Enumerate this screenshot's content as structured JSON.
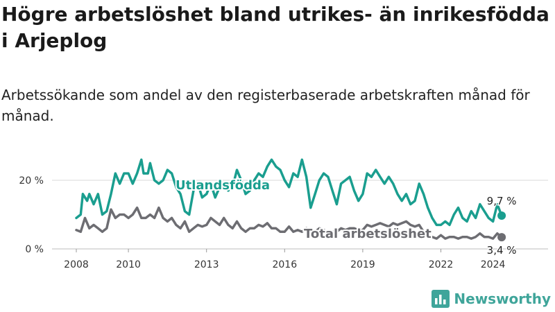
{
  "title": "Högre arbetslöshet bland utrikes- än inrikesfödda i Arjeplog",
  "subtitle": "Arbetssökande som andel av den registerbaserade arbetskraften månad för månad.",
  "brand": "Newsworthy",
  "colors": {
    "utlandsfodda": "#1a9e8f",
    "total": "#6d6d72",
    "grid": "#d9d9d9",
    "brand": "#3fa59a"
  },
  "chart_data": {
    "type": "line",
    "title": "Högre arbetslöshet bland utrikes- än inrikesfödda i Arjeplog",
    "subtitle": "Arbetssökande som andel av den registerbaserade arbetskraften månad för månad.",
    "xlabel": "",
    "ylabel": "",
    "xlim": [
      "2008-01",
      "2024-12"
    ],
    "ylim": [
      0,
      28
    ],
    "x_ticks": [
      "2008",
      "2010",
      "2013",
      "2016",
      "2019",
      "2022",
      "2024"
    ],
    "y_ticks": [
      {
        "value": 0,
        "label": "0 %"
      },
      {
        "value": 20,
        "label": "20 %"
      }
    ],
    "grid": "horizontal",
    "series": [
      {
        "name": "Utlandsfödda",
        "end_label": "9,7 %",
        "points": [
          [
            "2008-01",
            9.0
          ],
          [
            "2008-03",
            10.0
          ],
          [
            "2008-04",
            16.0
          ],
          [
            "2008-06",
            14.0
          ],
          [
            "2008-07",
            16.0
          ],
          [
            "2008-09",
            13.0
          ],
          [
            "2008-11",
            16.0
          ],
          [
            "2009-01",
            10.0
          ],
          [
            "2009-03",
            11.0
          ],
          [
            "2009-05",
            16.0
          ],
          [
            "2009-07",
            22.0
          ],
          [
            "2009-09",
            19.0
          ],
          [
            "2009-11",
            22.0
          ],
          [
            "2010-01",
            22.0
          ],
          [
            "2010-03",
            19.0
          ],
          [
            "2010-05",
            22.0
          ],
          [
            "2010-07",
            26.0
          ],
          [
            "2010-08",
            22.0
          ],
          [
            "2010-10",
            22.0
          ],
          [
            "2010-11",
            25.0
          ],
          [
            "2011-01",
            20.0
          ],
          [
            "2011-03",
            19.0
          ],
          [
            "2011-05",
            20.0
          ],
          [
            "2011-07",
            23.0
          ],
          [
            "2011-09",
            22.0
          ],
          [
            "2011-11",
            18.0
          ],
          [
            "2012-01",
            16.0
          ],
          [
            "2012-03",
            11.0
          ],
          [
            "2012-05",
            10.0
          ],
          [
            "2012-07",
            17.0
          ],
          [
            "2012-09",
            19.0
          ],
          [
            "2012-11",
            15.0
          ],
          [
            "2013-01",
            16.0
          ],
          [
            "2013-03",
            19.0
          ],
          [
            "2013-05",
            15.0
          ],
          [
            "2013-07",
            18.0
          ],
          [
            "2013-09",
            19.0
          ],
          [
            "2013-11",
            17.0
          ],
          [
            "2014-01",
            18.0
          ],
          [
            "2014-03",
            23.0
          ],
          [
            "2014-05",
            20.0
          ],
          [
            "2014-07",
            16.0
          ],
          [
            "2014-09",
            17.0
          ],
          [
            "2014-11",
            20.0
          ],
          [
            "2015-01",
            22.0
          ],
          [
            "2015-03",
            21.0
          ],
          [
            "2015-05",
            24.0
          ],
          [
            "2015-07",
            26.0
          ],
          [
            "2015-09",
            24.0
          ],
          [
            "2015-11",
            23.0
          ],
          [
            "2016-01",
            20.0
          ],
          [
            "2016-03",
            18.0
          ],
          [
            "2016-05",
            22.0
          ],
          [
            "2016-07",
            21.0
          ],
          [
            "2016-09",
            26.0
          ],
          [
            "2016-11",
            21.0
          ],
          [
            "2017-01",
            12.0
          ],
          [
            "2017-03",
            16.0
          ],
          [
            "2017-05",
            20.0
          ],
          [
            "2017-07",
            22.0
          ],
          [
            "2017-09",
            21.0
          ],
          [
            "2017-11",
            17.0
          ],
          [
            "2018-01",
            13.0
          ],
          [
            "2018-03",
            19.0
          ],
          [
            "2018-05",
            20.0
          ],
          [
            "2018-07",
            21.0
          ],
          [
            "2018-09",
            17.0
          ],
          [
            "2018-11",
            14.0
          ],
          [
            "2019-01",
            16.0
          ],
          [
            "2019-03",
            22.0
          ],
          [
            "2019-05",
            21.0
          ],
          [
            "2019-07",
            23.0
          ],
          [
            "2019-09",
            21.0
          ],
          [
            "2019-11",
            19.0
          ],
          [
            "2020-01",
            21.0
          ],
          [
            "2020-03",
            19.0
          ],
          [
            "2020-05",
            16.0
          ],
          [
            "2020-07",
            14.0
          ],
          [
            "2020-09",
            16.0
          ],
          [
            "2020-11",
            13.0
          ],
          [
            "2021-01",
            14.0
          ],
          [
            "2021-03",
            19.0
          ],
          [
            "2021-05",
            16.0
          ],
          [
            "2021-07",
            12.0
          ],
          [
            "2021-09",
            9.0
          ],
          [
            "2021-11",
            7.0
          ],
          [
            "2022-01",
            7.0
          ],
          [
            "2022-03",
            8.0
          ],
          [
            "2022-05",
            7.0
          ],
          [
            "2022-07",
            10.0
          ],
          [
            "2022-09",
            12.0
          ],
          [
            "2022-11",
            9.0
          ],
          [
            "2023-01",
            8.0
          ],
          [
            "2023-03",
            11.0
          ],
          [
            "2023-05",
            9.0
          ],
          [
            "2023-07",
            13.0
          ],
          [
            "2023-09",
            11.0
          ],
          [
            "2023-11",
            9.0
          ],
          [
            "2024-01",
            8.0
          ],
          [
            "2024-03",
            13.0
          ],
          [
            "2024-05",
            9.7
          ]
        ]
      },
      {
        "name": "Total arbetslöshet",
        "end_label": "3,4 %",
        "points": [
          [
            "2008-01",
            5.5
          ],
          [
            "2008-03",
            5.0
          ],
          [
            "2008-05",
            9.0
          ],
          [
            "2008-07",
            6.0
          ],
          [
            "2008-09",
            7.0
          ],
          [
            "2008-11",
            6.0
          ],
          [
            "2009-01",
            5.0
          ],
          [
            "2009-03",
            6.0
          ],
          [
            "2009-05",
            11.5
          ],
          [
            "2009-07",
            9.0
          ],
          [
            "2009-09",
            10.0
          ],
          [
            "2009-11",
            10.0
          ],
          [
            "2010-01",
            9.0
          ],
          [
            "2010-03",
            10.0
          ],
          [
            "2010-05",
            12.0
          ],
          [
            "2010-07",
            9.0
          ],
          [
            "2010-09",
            9.0
          ],
          [
            "2010-11",
            10.0
          ],
          [
            "2011-01",
            9.0
          ],
          [
            "2011-03",
            12.0
          ],
          [
            "2011-05",
            9.0
          ],
          [
            "2011-07",
            8.0
          ],
          [
            "2011-09",
            9.0
          ],
          [
            "2011-11",
            7.0
          ],
          [
            "2012-01",
            6.0
          ],
          [
            "2012-03",
            8.0
          ],
          [
            "2012-05",
            5.0
          ],
          [
            "2012-07",
            6.0
          ],
          [
            "2012-09",
            7.0
          ],
          [
            "2012-11",
            6.5
          ],
          [
            "2013-01",
            7.0
          ],
          [
            "2013-03",
            9.0
          ],
          [
            "2013-05",
            8.0
          ],
          [
            "2013-07",
            7.0
          ],
          [
            "2013-09",
            9.0
          ],
          [
            "2013-11",
            7.0
          ],
          [
            "2014-01",
            6.0
          ],
          [
            "2014-03",
            8.0
          ],
          [
            "2014-05",
            6.0
          ],
          [
            "2014-07",
            5.0
          ],
          [
            "2014-09",
            6.0
          ],
          [
            "2014-11",
            6.0
          ],
          [
            "2015-01",
            7.0
          ],
          [
            "2015-03",
            6.5
          ],
          [
            "2015-05",
            7.5
          ],
          [
            "2015-07",
            6.0
          ],
          [
            "2015-09",
            6.0
          ],
          [
            "2015-11",
            5.0
          ],
          [
            "2016-01",
            5.0
          ],
          [
            "2016-03",
            6.5
          ],
          [
            "2016-05",
            5.0
          ],
          [
            "2016-07",
            5.5
          ],
          [
            "2016-09",
            5.0
          ],
          [
            "2016-11",
            6.0
          ],
          [
            "2017-01",
            5.5
          ],
          [
            "2017-03",
            5.0
          ],
          [
            "2017-05",
            6.0
          ],
          [
            "2017-07",
            5.5
          ],
          [
            "2017-09",
            5.0
          ],
          [
            "2017-11",
            5.0
          ],
          [
            "2018-01",
            5.0
          ],
          [
            "2018-03",
            6.0
          ],
          [
            "2018-05",
            5.5
          ],
          [
            "2018-07",
            6.0
          ],
          [
            "2018-09",
            6.0
          ],
          [
            "2018-11",
            5.5
          ],
          [
            "2019-01",
            5.5
          ],
          [
            "2019-03",
            7.0
          ],
          [
            "2019-05",
            6.5
          ],
          [
            "2019-07",
            7.0
          ],
          [
            "2019-09",
            7.5
          ],
          [
            "2019-11",
            7.0
          ],
          [
            "2020-01",
            6.5
          ],
          [
            "2020-03",
            7.5
          ],
          [
            "2020-05",
            7.0
          ],
          [
            "2020-07",
            7.5
          ],
          [
            "2020-09",
            8.0
          ],
          [
            "2020-11",
            7.0
          ],
          [
            "2021-01",
            6.5
          ],
          [
            "2021-03",
            7.0
          ],
          [
            "2021-05",
            5.0
          ],
          [
            "2021-07",
            4.0
          ],
          [
            "2021-09",
            3.5
          ],
          [
            "2021-11",
            3.0
          ],
          [
            "2022-01",
            4.0
          ],
          [
            "2022-03",
            3.0
          ],
          [
            "2022-05",
            3.5
          ],
          [
            "2022-07",
            3.5
          ],
          [
            "2022-09",
            3.0
          ],
          [
            "2022-11",
            3.5
          ],
          [
            "2023-01",
            3.5
          ],
          [
            "2023-03",
            3.0
          ],
          [
            "2023-05",
            3.5
          ],
          [
            "2023-07",
            4.5
          ],
          [
            "2023-09",
            3.5
          ],
          [
            "2023-11",
            3.5
          ],
          [
            "2024-01",
            3.0
          ],
          [
            "2024-03",
            4.5
          ],
          [
            "2024-05",
            3.4
          ]
        ]
      }
    ]
  }
}
